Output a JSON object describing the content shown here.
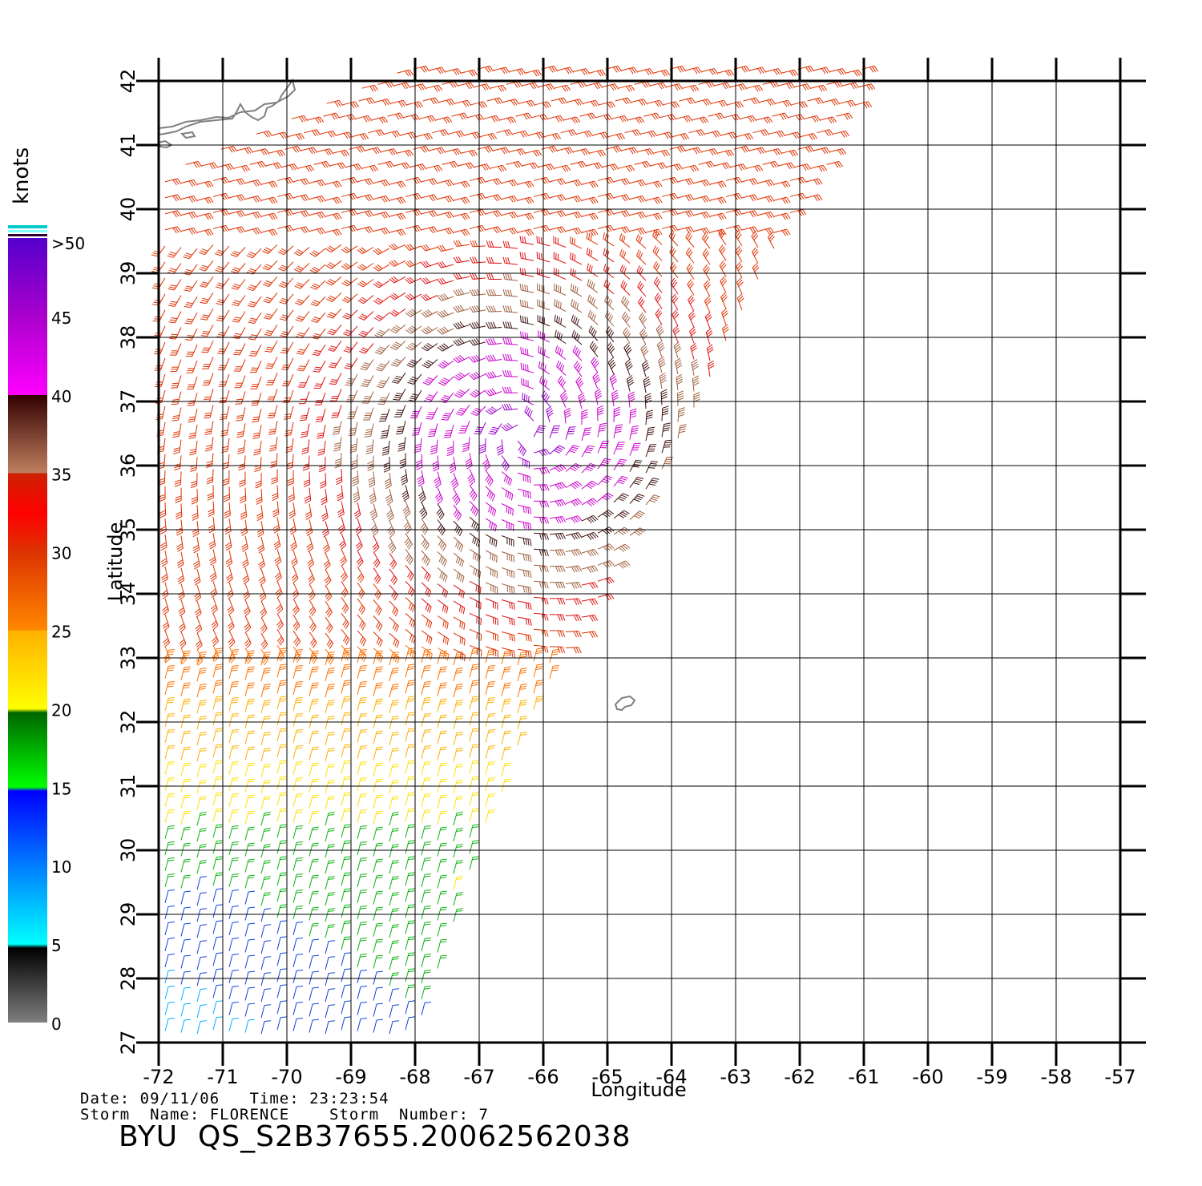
{
  "map": {
    "lon_range": [
      -72,
      -57
    ],
    "lat_range": [
      27,
      42
    ],
    "x_ticks": [
      "-72",
      "-71",
      "-70",
      "-69",
      "-68",
      "-67",
      "-66",
      "-65",
      "-64",
      "-63",
      "-62",
      "-61",
      "-60",
      "-59",
      "-58",
      "-57"
    ],
    "y_ticks": [
      "27",
      "28",
      "29",
      "30",
      "31",
      "32",
      "33",
      "34",
      "35",
      "36",
      "37",
      "38",
      "39",
      "40",
      "41",
      "42"
    ],
    "xlabel": "Longitude",
    "ylabel": "Latitude",
    "grid": true,
    "land_color": "#808080",
    "field": "QuikSCAT wind vectors (barbs) colored by speed",
    "swath_edges": [
      [
        -71.0,
        42.2
      ],
      [
        -61.0,
        42.0
      ],
      [
        -61.6,
        40.9
      ],
      [
        -62.0,
        40.0
      ],
      [
        -63.2,
        38.0
      ],
      [
        -64.0,
        36.2
      ],
      [
        -64.5,
        35.0
      ],
      [
        -65.0,
        34.0
      ],
      [
        -65.5,
        33.0
      ],
      [
        -66.0,
        32.0
      ],
      [
        -66.5,
        31.0
      ],
      [
        -67.0,
        30.0
      ],
      [
        -67.5,
        29.0
      ],
      [
        -67.8,
        28.0
      ],
      [
        -68.0,
        27.0
      ],
      [
        -72.0,
        27.0
      ],
      [
        -72.0,
        42.2
      ]
    ]
  },
  "colorbar": {
    "title": "knots",
    "labels": [
      "0",
      "5",
      "10",
      "15",
      "20",
      "25",
      "30",
      "35",
      "40",
      "45",
      ">50"
    ],
    "color_stops": [
      "#7f7f7f",
      "#000000",
      "#00ffff",
      "#0000ff",
      "#00ff00",
      "#006600",
      "#ffff00",
      "#ffb000",
      "#ff8800",
      "#dd3300",
      "#ff0000",
      "#cc2200",
      "#c08060",
      "#330000",
      "#ff00ff",
      "#aa00cc",
      "#5500cc"
    ]
  },
  "footer": {
    "date_line": "Date: 09/11/06   Time: 23:23:54",
    "storm_line": "Storm  Name: FLORENCE    Storm  Number: 7",
    "product": "BYU  QS_S2B37655.20062562038"
  }
}
